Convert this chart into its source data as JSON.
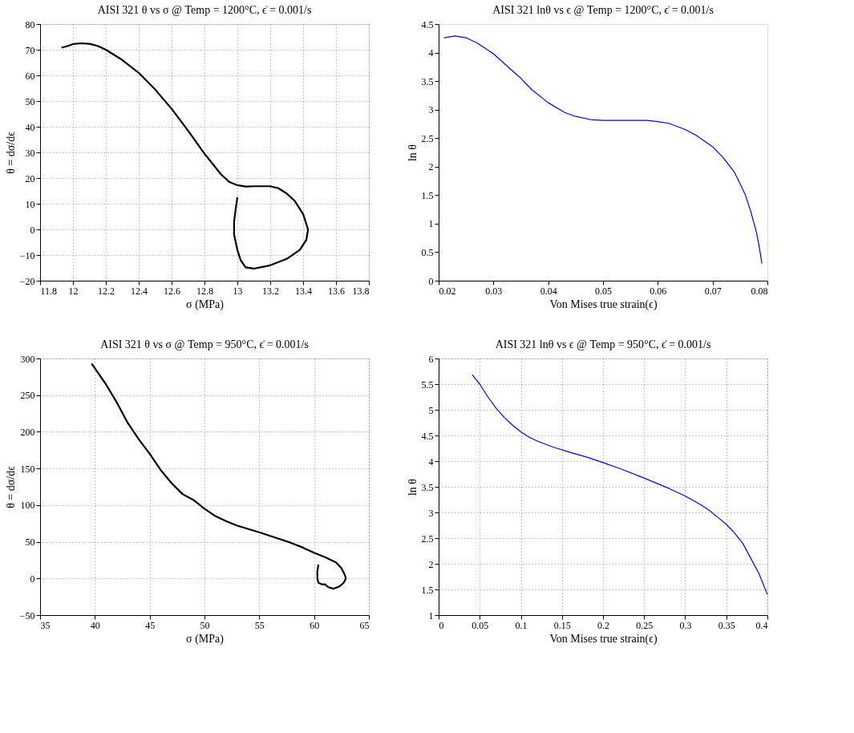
{
  "chart_data": [
    {
      "type": "line",
      "title": "AISI 321 θ vs σ @ Temp = 1200°C, ϵ̇ = 0.001/s",
      "xlabel": "σ (MPa)",
      "ylabel": "θ = dσ/dϵ",
      "grid": true,
      "xlim": [
        11.8,
        13.8
      ],
      "xticks": [
        11.8,
        12,
        12.2,
        12.4,
        12.6,
        12.8,
        13,
        13.2,
        13.4,
        13.6,
        13.8
      ],
      "ylim": [
        -20,
        80
      ],
      "yticks": [
        -20,
        -10,
        0,
        10,
        20,
        30,
        40,
        50,
        60,
        70,
        80
      ],
      "x": [
        11.93,
        11.97,
        12.0,
        12.05,
        12.1,
        12.15,
        12.2,
        12.3,
        12.4,
        12.5,
        12.6,
        12.7,
        12.8,
        12.9,
        12.95,
        13.0,
        13.05,
        13.1,
        13.2,
        13.25,
        13.3,
        13.35,
        13.4,
        13.43,
        13.42,
        13.38,
        13.3,
        13.2,
        13.1,
        13.05,
        13.02,
        13.0,
        12.98,
        12.98,
        12.99,
        13.0
      ],
      "series": [
        {
          "color": "#000000",
          "values": [
            70.8,
            71.5,
            72.2,
            72.5,
            72.3,
            71.5,
            70,
            66,
            61,
            54.5,
            47,
            38.5,
            29.5,
            21.5,
            18.5,
            17.2,
            16.7,
            16.8,
            16.8,
            16,
            14,
            11,
            6,
            0,
            -4,
            -8,
            -11.5,
            -14,
            -15.3,
            -14.8,
            -12,
            -8,
            -2,
            3,
            8,
            12.5
          ]
        }
      ]
    },
    {
      "type": "line",
      "title": "AISI 321 lnθ vs ϵ @ Temp = 1200°C, ϵ̇ = 0.001/s",
      "xlabel": "Von Mises true strain(ϵ)",
      "ylabel": "ln θ",
      "xlim": [
        0.02,
        0.08
      ],
      "xticks": [
        0.02,
        0.03,
        0.04,
        0.05,
        0.06,
        0.07,
        0.08
      ],
      "ylim": [
        0,
        4.5
      ],
      "yticks": [
        0,
        0.5,
        1,
        1.5,
        2,
        2.5,
        3,
        3.5,
        4,
        4.5
      ],
      "x": [
        0.021,
        0.023,
        0.025,
        0.027,
        0.03,
        0.033,
        0.035,
        0.037,
        0.04,
        0.043,
        0.045,
        0.048,
        0.05,
        0.055,
        0.058,
        0.06,
        0.062,
        0.065,
        0.067,
        0.07,
        0.072,
        0.074,
        0.075,
        0.076,
        0.077,
        0.078,
        0.0785,
        0.079
      ],
      "series": [
        {
          "color": "#0000ff",
          "values": [
            4.26,
            4.29,
            4.26,
            4.17,
            3.98,
            3.72,
            3.55,
            3.35,
            3.12,
            2.95,
            2.88,
            2.82,
            2.81,
            2.81,
            2.81,
            2.79,
            2.76,
            2.65,
            2.55,
            2.35,
            2.15,
            1.9,
            1.7,
            1.5,
            1.2,
            0.85,
            0.6,
            0.3
          ]
        }
      ]
    },
    {
      "type": "line",
      "title": "AISI 321 θ vs σ @ Temp = 950°C, ϵ̇ = 0.001/s",
      "xlabel": "σ (MPa)",
      "ylabel": "θ = dσ/dϵ",
      "grid": true,
      "xlim": [
        35,
        65
      ],
      "xticks": [
        35,
        40,
        45,
        50,
        55,
        60,
        65
      ],
      "ylim": [
        -50,
        300
      ],
      "yticks": [
        -50,
        0,
        50,
        100,
        150,
        200,
        250,
        300
      ],
      "x": [
        39.7,
        41,
        42,
        43,
        44,
        45,
        46,
        47,
        48,
        49,
        50,
        51,
        52,
        53,
        55,
        57,
        58,
        59,
        60,
        61,
        62,
        62.5,
        62.8,
        62.9,
        62.7,
        62.3,
        61.8,
        61.3,
        61,
        60.7,
        60.4,
        60.3,
        60.3,
        60.4
      ],
      "series": [
        {
          "color": "#000000",
          "values": [
            293,
            265,
            240,
            212,
            190,
            170,
            148,
            130,
            115,
            107,
            95,
            85,
            78,
            72,
            63,
            53,
            48,
            42,
            35,
            29,
            22,
            14,
            5,
            0,
            -6,
            -11,
            -14,
            -12,
            -8,
            -8,
            -6,
            0,
            10,
            19
          ]
        }
      ]
    },
    {
      "type": "line",
      "title": "AISI 321 lnθ vs ϵ @ Temp = 950°C, ϵ̇ = 0.001/s",
      "xlabel": "Von Mises true strain(ϵ)",
      "ylabel": "ln θ",
      "grid": true,
      "xlim": [
        0,
        0.4
      ],
      "xticks": [
        0,
        0.05,
        0.1,
        0.15,
        0.2,
        0.25,
        0.3,
        0.35,
        0.4
      ],
      "ylim": [
        1,
        6
      ],
      "yticks": [
        1,
        1.5,
        2,
        2.5,
        3,
        3.5,
        4,
        4.5,
        5,
        5.5,
        6
      ],
      "x": [
        0.041,
        0.05,
        0.06,
        0.07,
        0.08,
        0.09,
        0.1,
        0.11,
        0.12,
        0.14,
        0.16,
        0.18,
        0.2,
        0.22,
        0.25,
        0.28,
        0.3,
        0.32,
        0.33,
        0.34,
        0.35,
        0.36,
        0.37,
        0.38,
        0.39,
        0.4
      ],
      "series": [
        {
          "color": "#0000ff",
          "values": [
            5.68,
            5.5,
            5.25,
            5.03,
            4.85,
            4.7,
            4.57,
            4.47,
            4.39,
            4.27,
            4.17,
            4.08,
            3.97,
            3.86,
            3.67,
            3.47,
            3.32,
            3.14,
            3.03,
            2.9,
            2.77,
            2.6,
            2.4,
            2.1,
            1.8,
            1.4
          ]
        }
      ]
    }
  ]
}
